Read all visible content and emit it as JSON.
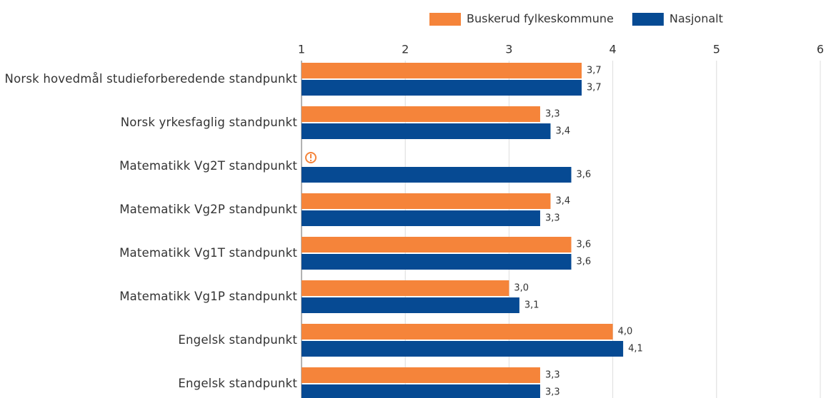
{
  "chart_data": {
    "type": "bar",
    "orientation": "horizontal",
    "categories": [
      "Norsk hovedmål studieforberedende standpunkt",
      "Norsk yrkesfaglig standpunkt",
      "Matematikk Vg2T standpunkt",
      "Matematikk Vg2P standpunkt",
      "Matematikk Vg1T standpunkt",
      "Matematikk Vg1P standpunkt",
      "Engelsk standpunkt",
      "Engelsk standpunkt"
    ],
    "series": [
      {
        "name": "Buskerud fylkeskommune",
        "color": "#f5843a",
        "values": [
          3.7,
          3.3,
          null,
          3.4,
          3.6,
          3.0,
          4.0,
          3.3
        ],
        "value_labels": [
          "3,7",
          "3,3",
          null,
          "3,4",
          "3,6",
          "3,0",
          "4,0",
          "3,3"
        ]
      },
      {
        "name": "Nasjonalt",
        "color": "#064a93",
        "values": [
          3.7,
          3.4,
          3.6,
          3.3,
          3.6,
          3.1,
          4.1,
          3.3
        ],
        "value_labels": [
          "3,7",
          "3,4",
          "3,6",
          "3,3",
          "3,6",
          "3,1",
          "4,1",
          "3,3"
        ]
      }
    ],
    "xlim": [
      1,
      6
    ],
    "xticks": [
      1,
      2,
      3,
      4,
      5,
      6
    ],
    "grid": true,
    "legend": "top-right"
  }
}
